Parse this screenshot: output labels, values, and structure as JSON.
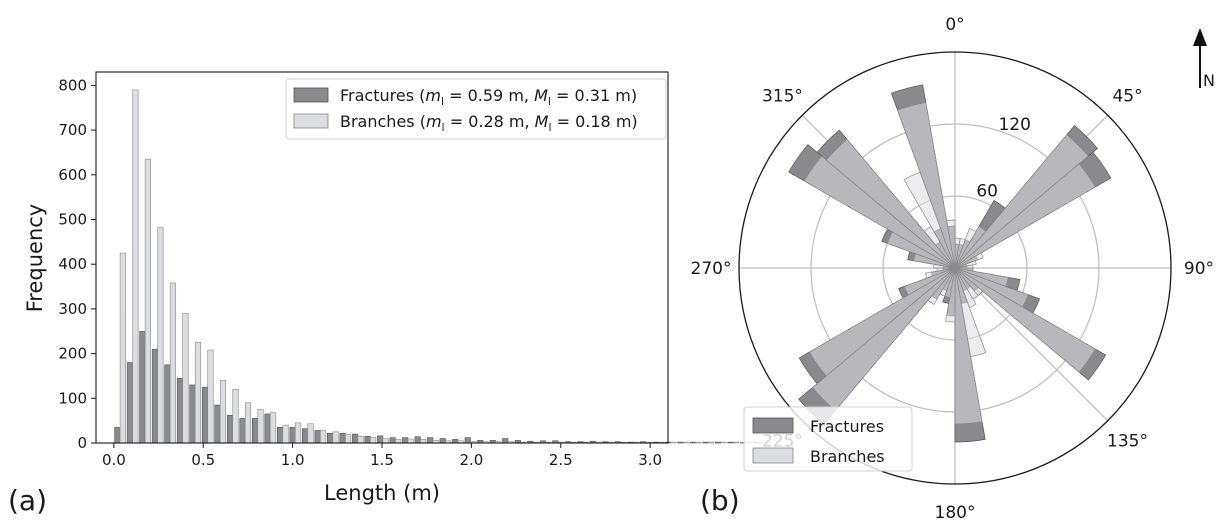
{
  "panel_a_label": "(a)",
  "panel_b_label": "(b)",
  "colors": {
    "fractures": "#8a8a8e",
    "branches": "#dcdde1",
    "edge": "#555555"
  },
  "chart_data": [
    {
      "type": "bar",
      "xlabel": "Length (m)",
      "ylabel": "Frequency",
      "xlim": [
        -0.1,
        3.1
      ],
      "ylim": [
        0,
        830
      ],
      "xticks": [
        "0.0",
        "0.5",
        "1.0",
        "1.5",
        "2.0",
        "2.5",
        "3.0"
      ],
      "yticks": [
        "0",
        "100",
        "200",
        "300",
        "400",
        "500",
        "600",
        "700",
        "800"
      ],
      "bin_width": 0.07,
      "legend_position": "top-right",
      "legend": {
        "fractures": {
          "prefix": "Fractures (",
          "m_sym": "m",
          "m_val": " = 0.59 m, ",
          "M_sym": "M",
          "M_val": " = 0.31 m)"
        },
        "branches": {
          "prefix": "Branches (",
          "m_sym": "m",
          "m_val": " = 0.28 m, ",
          "M_sym": "M",
          "M_val": " = 0.18 m)"
        },
        "subscript": "l"
      },
      "series": [
        {
          "name": "Fractures",
          "values": [
            35,
            180,
            250,
            210,
            175,
            145,
            130,
            125,
            85,
            62,
            55,
            55,
            65,
            35,
            35,
            32,
            28,
            22,
            22,
            20,
            15,
            16,
            12,
            12,
            14,
            12,
            10,
            8,
            12,
            6,
            6,
            10,
            6,
            4,
            5,
            5,
            3,
            3,
            4,
            3,
            3,
            2,
            3,
            2,
            2,
            2,
            2,
            2,
            2,
            2,
            1,
            2
          ]
        },
        {
          "name": "Branches",
          "values": [
            425,
            790,
            635,
            482,
            358,
            290,
            225,
            208,
            140,
            120,
            90,
            75,
            68,
            40,
            45,
            43,
            28,
            25,
            19,
            15,
            13,
            10,
            8,
            9,
            8,
            6,
            5,
            5,
            3,
            3,
            3,
            3,
            2,
            2,
            2,
            2,
            2,
            2,
            2,
            2,
            2,
            2,
            2,
            2,
            2,
            2,
            2,
            2,
            2,
            2,
            2,
            2
          ]
        }
      ]
    },
    {
      "type": "rose",
      "compass_label": "N",
      "angle_labels": [
        "0°",
        "45°",
        "90°",
        "135°",
        "180°",
        "225°",
        "270°",
        "315°"
      ],
      "r_tick_labels": [
        "60",
        "120"
      ],
      "r_ticks": [
        60,
        120
      ],
      "rmax": 180,
      "bin_width_deg": 10,
      "legend_position": "lower-left",
      "series": [
        {
          "name": "Fractures",
          "bins": [
            {
              "angle": 5,
              "value": 20
            },
            {
              "angle": 15,
              "value": 20
            },
            {
              "angle": 25,
              "value": 25
            },
            {
              "angle": 35,
              "value": 65
            },
            {
              "angle": 45,
              "value": 155
            },
            {
              "angle": 55,
              "value": 150
            },
            {
              "angle": 65,
              "value": 20
            },
            {
              "angle": 75,
              "value": 10
            },
            {
              "angle": 85,
              "value": 10
            },
            {
              "angle": 95,
              "value": 15
            },
            {
              "angle": 105,
              "value": 55
            },
            {
              "angle": 115,
              "value": 75
            },
            {
              "angle": 125,
              "value": 145
            },
            {
              "angle": 135,
              "value": 25
            },
            {
              "angle": 145,
              "value": 20
            },
            {
              "angle": 155,
              "value": 20
            },
            {
              "angle": 165,
              "value": 30
            },
            {
              "angle": 175,
              "value": 145
            },
            {
              "angle": 185,
              "value": 40
            },
            {
              "angle": 195,
              "value": 30
            },
            {
              "angle": 205,
              "value": 20
            },
            {
              "angle": 215,
              "value": 30
            },
            {
              "angle": 225,
              "value": 170
            },
            {
              "angle": 235,
              "value": 150
            },
            {
              "angle": 245,
              "value": 50
            },
            {
              "angle": 255,
              "value": 20
            },
            {
              "angle": 265,
              "value": 10
            },
            {
              "angle": 275,
              "value": 10
            },
            {
              "angle": 285,
              "value": 40
            },
            {
              "angle": 295,
              "value": 65
            },
            {
              "angle": 305,
              "value": 160
            },
            {
              "angle": 315,
              "value": 150
            },
            {
              "angle": 325,
              "value": 25
            },
            {
              "angle": 335,
              "value": 35
            },
            {
              "angle": 345,
              "value": 155
            },
            {
              "angle": 355,
              "value": 35
            }
          ]
        },
        {
          "name": "Branches",
          "bins": [
            {
              "angle": 5,
              "value": 25
            },
            {
              "angle": 15,
              "value": 25
            },
            {
              "angle": 25,
              "value": 35
            },
            {
              "angle": 35,
              "value": 40
            },
            {
              "angle": 45,
              "value": 145
            },
            {
              "angle": 55,
              "value": 135
            },
            {
              "angle": 65,
              "value": 25
            },
            {
              "angle": 75,
              "value": 18
            },
            {
              "angle": 85,
              "value": 15
            },
            {
              "angle": 95,
              "value": 15
            },
            {
              "angle": 105,
              "value": 45
            },
            {
              "angle": 115,
              "value": 65
            },
            {
              "angle": 125,
              "value": 135
            },
            {
              "angle": 135,
              "value": 30
            },
            {
              "angle": 145,
              "value": 30
            },
            {
              "angle": 155,
              "value": 35
            },
            {
              "angle": 165,
              "value": 75
            },
            {
              "angle": 175,
              "value": 130
            },
            {
              "angle": 185,
              "value": 45
            },
            {
              "angle": 195,
              "value": 25
            },
            {
              "angle": 205,
              "value": 25
            },
            {
              "angle": 215,
              "value": 35
            },
            {
              "angle": 225,
              "value": 155
            },
            {
              "angle": 235,
              "value": 140
            },
            {
              "angle": 245,
              "value": 45
            },
            {
              "angle": 255,
              "value": 25
            },
            {
              "angle": 265,
              "value": 15
            },
            {
              "angle": 275,
              "value": 18
            },
            {
              "angle": 285,
              "value": 35
            },
            {
              "angle": 295,
              "value": 60
            },
            {
              "angle": 305,
              "value": 145
            },
            {
              "angle": 315,
              "value": 140
            },
            {
              "angle": 325,
              "value": 40
            },
            {
              "angle": 335,
              "value": 85
            },
            {
              "angle": 345,
              "value": 140
            },
            {
              "angle": 355,
              "value": 40
            }
          ]
        }
      ]
    }
  ]
}
